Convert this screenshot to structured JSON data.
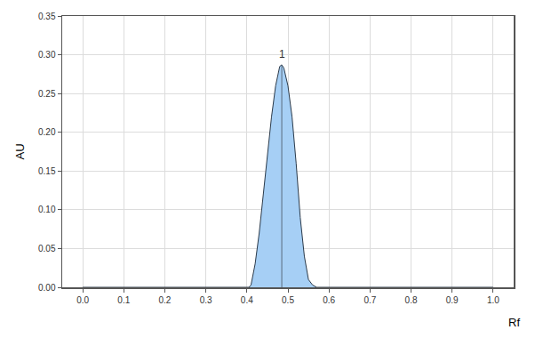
{
  "chart_data": {
    "type": "area",
    "x_label": "Rf",
    "y_label": "AU",
    "x": [
      0.0,
      0.405,
      0.41,
      0.42,
      0.43,
      0.44,
      0.45,
      0.46,
      0.47,
      0.48,
      0.485,
      0.49,
      0.5,
      0.51,
      0.52,
      0.53,
      0.54,
      0.55,
      0.56,
      0.57,
      1.0
    ],
    "values": [
      0,
      0,
      0.003,
      0.03,
      0.07,
      0.12,
      0.17,
      0.22,
      0.26,
      0.285,
      0.287,
      0.283,
      0.26,
      0.22,
      0.16,
      0.09,
      0.04,
      0.01,
      0.003,
      0,
      0
    ],
    "color": "#a6cff5",
    "annotations": [
      {
        "text": "1",
        "x": 0.485,
        "y": 0.287
      }
    ],
    "xlim": [
      -0.05,
      1.05
    ],
    "xticks": [
      {
        "value": 0,
        "label": "0.0"
      },
      0.1,
      0.2,
      0.3,
      0.4,
      0.5,
      0.6,
      0.7,
      0.8,
      0.9,
      {
        "value": 1,
        "label": "1.0"
      }
    ],
    "ylim": [
      0,
      0.35
    ],
    "yticks": [
      {
        "value": 0,
        "label": "0.00"
      },
      {
        "value": 0.05,
        "label": "0.05"
      },
      {
        "value": 0.1,
        "label": "0.10"
      },
      {
        "value": 0.15,
        "label": "0.15"
      },
      {
        "value": 0.2,
        "label": "0.20"
      },
      {
        "value": 0.25,
        "label": "0.25"
      },
      {
        "value": 0.3,
        "label": "0.30"
      },
      {
        "value": 0.35,
        "label": "0.35"
      }
    ],
    "grid": true
  }
}
